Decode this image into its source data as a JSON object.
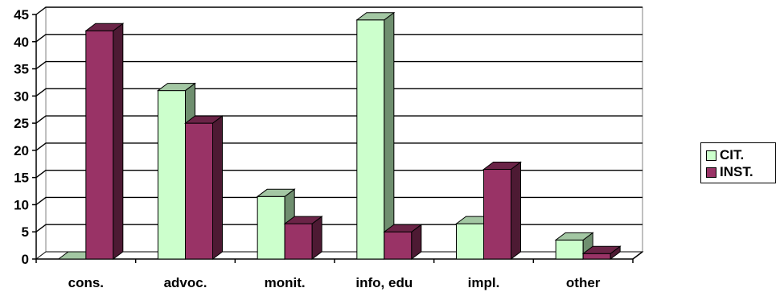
{
  "chart_data": {
    "type": "bar",
    "categories": [
      "cons.",
      "advoc.",
      "monit.",
      "info, edu",
      "impl.",
      "other"
    ],
    "series": [
      {
        "name": "CIT.",
        "color": "#ccffcc",
        "side_color": "#6f8f6f",
        "top_color": "#a3c7a3",
        "values": [
          0,
          31,
          11.5,
          44,
          6.5,
          3.5
        ]
      },
      {
        "name": "INST.",
        "color": "#993366",
        "side_color": "#4d1a33",
        "top_color": "#6b2447",
        "values": [
          42,
          25,
          6.5,
          5,
          16.5,
          1
        ]
      }
    ],
    "yticks": [
      0,
      5,
      10,
      15,
      20,
      25,
      30,
      35,
      40,
      45
    ],
    "ylim": [
      0,
      45
    ],
    "xlabel": "",
    "ylabel": "",
    "title": "",
    "grid": true,
    "legend_position": "right"
  }
}
